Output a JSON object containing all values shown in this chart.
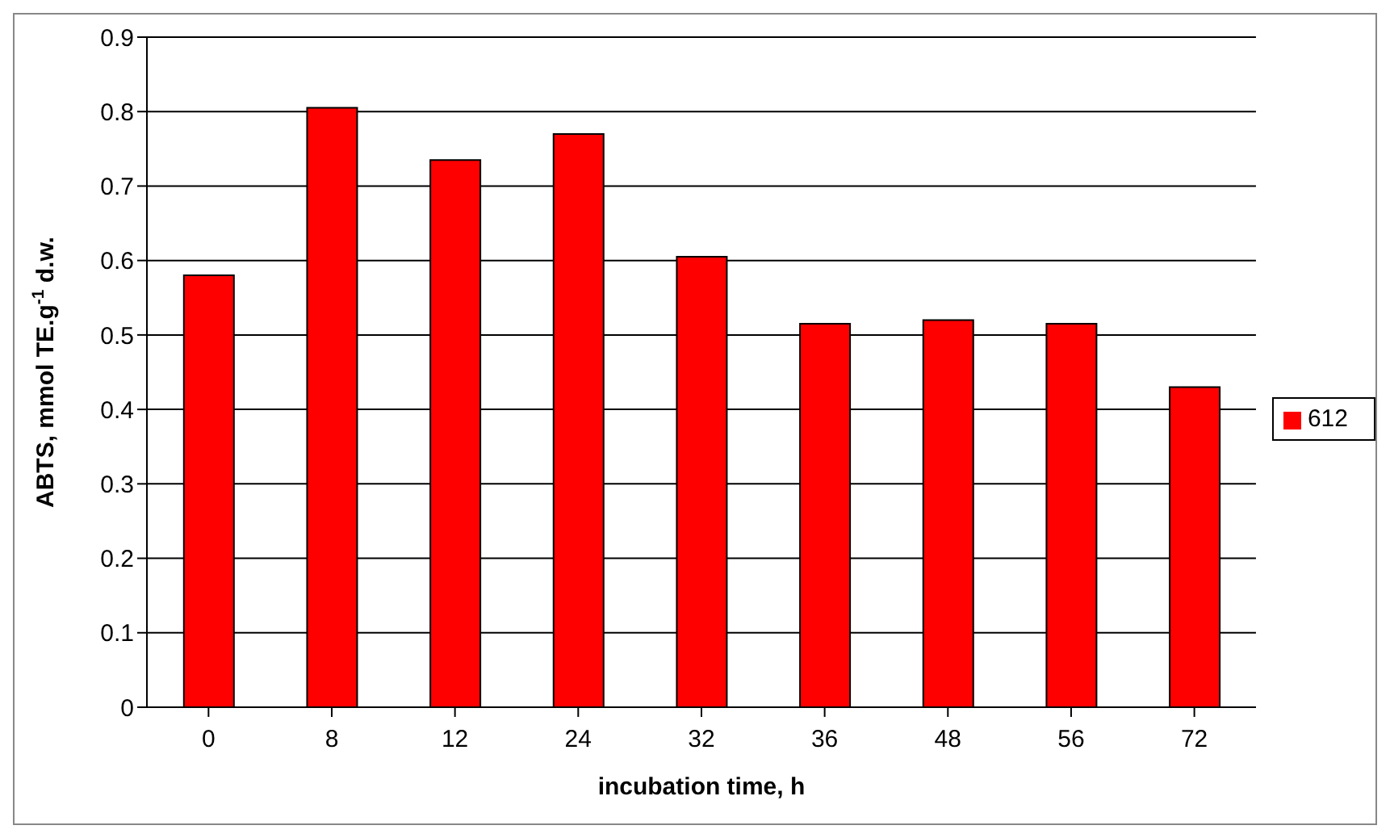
{
  "chart_data": {
    "type": "bar",
    "xlabel": "incubation time, h",
    "ylabel": "ABTS, mmol TE.g$^{-1}$ d.w.",
    "categories": [
      "0",
      "8",
      "12",
      "24",
      "32",
      "36",
      "48",
      "56",
      "72"
    ],
    "series": [
      {
        "name": "612",
        "color": "#ff0000",
        "values": [
          0.58,
          0.805,
          0.735,
          0.77,
          0.605,
          0.515,
          0.52,
          0.515,
          0.43
        ]
      }
    ],
    "ylim": [
      0,
      0.9
    ],
    "yticks": [
      0,
      0.1,
      0.2,
      0.3,
      0.4,
      0.5,
      0.6,
      0.7,
      0.8,
      0.9
    ],
    "grid": "y",
    "legend": "right"
  }
}
